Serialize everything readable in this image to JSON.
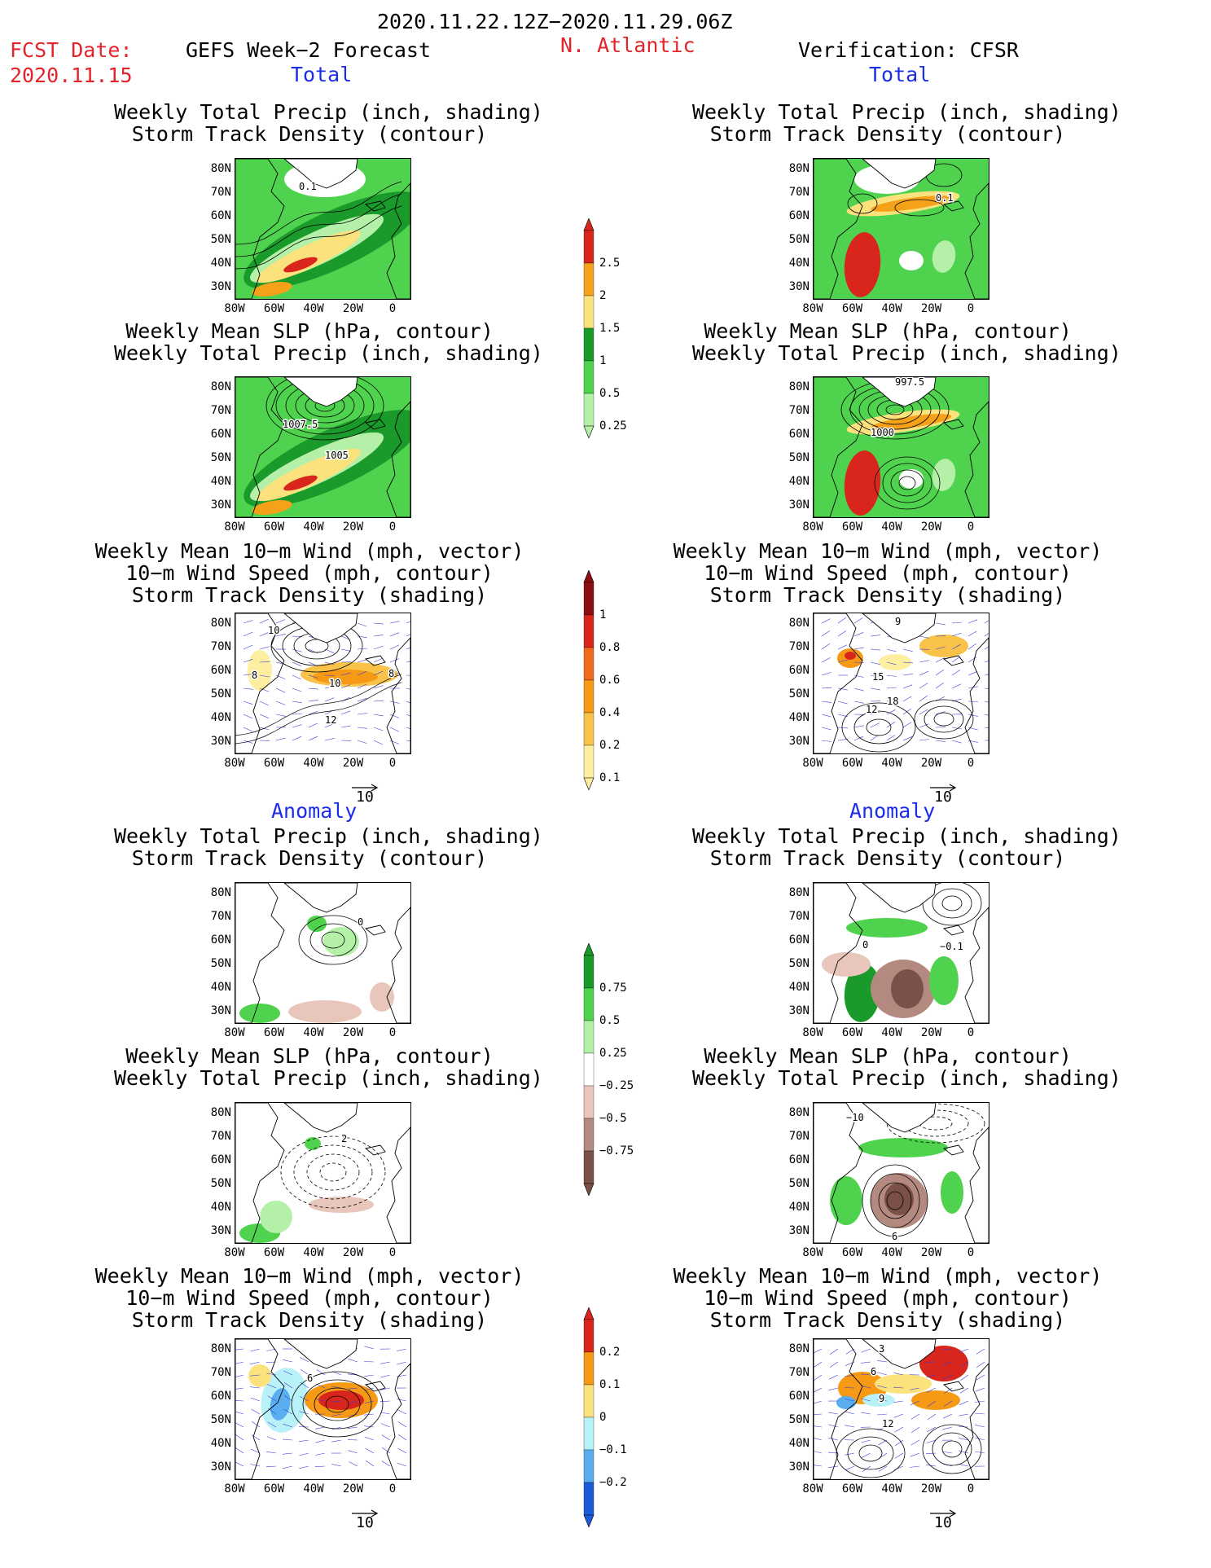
{
  "header": {
    "date_range": "2020.11.22.12Z−2020.11.29.06Z",
    "fcst_label": "FCST Date:",
    "fcst_date": "2020.11.15",
    "left_title": "GEFS Week−2 Forecast",
    "region": "N. Atlantic",
    "right_title": "Verification: CFSR"
  },
  "sections": {
    "total": "Total",
    "anomaly": "Anomaly"
  },
  "panel_titles": {
    "precip_track": [
      "Weekly Total Precip (inch, shading)",
      "Storm Track Density (contour)"
    ],
    "slp_precip": [
      "Weekly Mean SLP (hPa, contour)",
      "Weekly Total Precip (inch, shading)"
    ],
    "wind_track": [
      "Weekly Mean 10−m Wind (mph, vector)",
      "10−m Wind Speed (mph, contour)",
      "Storm Track Density (shading)"
    ]
  },
  "axes": {
    "lat_ticks": [
      "80N",
      "70N",
      "60N",
      "50N",
      "40N",
      "30N"
    ],
    "lon_ticks": [
      "80W",
      "60W",
      "40W",
      "20W",
      "0"
    ]
  },
  "vector_scale": "10",
  "map_labels": {
    "l1": [
      "0.1"
    ],
    "r1": [
      "0.1"
    ],
    "l2": [
      "1007.5",
      "1005"
    ],
    "r2": [
      "997.5",
      "1000"
    ],
    "l3": [
      "10",
      "10",
      "8",
      "8",
      "12"
    ],
    "r3": [
      "9",
      "15",
      "18",
      "12"
    ],
    "l4": [
      "0"
    ],
    "r4": [
      "0",
      "−0.1"
    ],
    "l5": [
      "2"
    ],
    "r5": [
      "−10",
      "6"
    ],
    "l6": [
      "6"
    ],
    "r6": [
      "3",
      "6",
      "9",
      "12"
    ]
  },
  "colorbars": {
    "precip_total": {
      "labels": [
        "2.5",
        "2",
        "1.5",
        "1",
        "0.5",
        "0.25"
      ],
      "colors": [
        "#d8261c",
        "#f6a11a",
        "#fce27c",
        "#1a9a2a",
        "#4fd34f",
        "#b4f0a8"
      ]
    },
    "track_total": {
      "labels": [
        "1",
        "0.8",
        "0.6",
        "0.4",
        "0.2",
        "0.1"
      ],
      "colors": [
        "#8c0f0f",
        "#d8261c",
        "#f06a1e",
        "#f69a16",
        "#f9c34a",
        "#fdeea0"
      ]
    },
    "precip_anom": {
      "labels": [
        "0.75",
        "0.5",
        "0.25",
        "−0.25",
        "−0.5",
        "−0.75"
      ],
      "colors": [
        "#1a9a2a",
        "#4fd34f",
        "#b4f0a8",
        "#ffffff",
        "#e8c6bb",
        "#b48a80",
        "#7a5048"
      ]
    },
    "track_anom": {
      "labels": [
        "0.2",
        "0.1",
        "0",
        "−0.1",
        "−0.2"
      ],
      "colors": [
        "#d8261c",
        "#f69a16",
        "#fce27c",
        "#b8f2f8",
        "#5aaef0",
        "#1c5cd8"
      ]
    }
  }
}
